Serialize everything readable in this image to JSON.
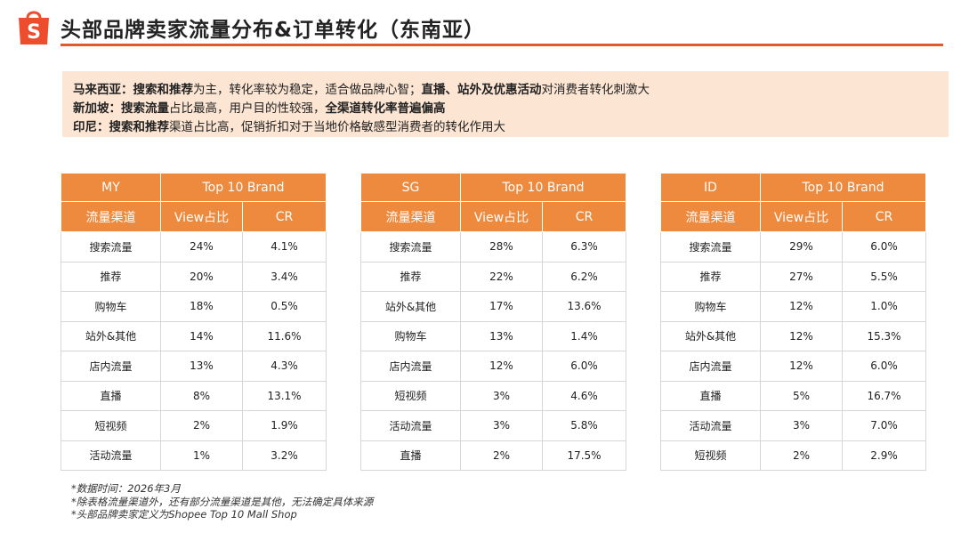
{
  "header": {
    "title": "头部品牌卖家流量分布&订单转化（东南亚）",
    "logo_letter": "S",
    "accent_color": "#e05a2b"
  },
  "summary": {
    "lines": [
      {
        "country": "马来西亚：",
        "bold1": "搜索和推荐",
        "normal1": "为主，转化率较为稳定，适合做品牌心智；",
        "bold2": "直播、站外及优惠活动",
        "normal2": "对消费者转化刺激大"
      },
      {
        "country": "新加坡：",
        "bold1": "搜索流量",
        "normal1": "占比最高，用户目的性较强，",
        "bold2": "全渠道转化率普遍偏高",
        "normal2": ""
      },
      {
        "country": "印尼：",
        "bold1": "搜索和推荐",
        "normal1": "渠道占比高，促销折扣对于当地价格敏感型消费者的转化作用大",
        "bold2": "",
        "normal2": ""
      }
    ]
  },
  "tables": [
    {
      "region": "MY",
      "group_header": "Top 10 Brand",
      "col_channel": "流量渠道",
      "col_view": "View占比",
      "col_cr": "CR",
      "rows": [
        {
          "channel": "搜索流量",
          "view": "24%",
          "cr": "4.1%"
        },
        {
          "channel": "推荐",
          "view": "20%",
          "cr": "3.4%"
        },
        {
          "channel": "购物车",
          "view": "18%",
          "cr": "0.5%"
        },
        {
          "channel": "站外&其他",
          "view": "14%",
          "cr": "11.6%"
        },
        {
          "channel": "店内流量",
          "view": "13%",
          "cr": "4.3%"
        },
        {
          "channel": "直播",
          "view": "8%",
          "cr": "13.1%"
        },
        {
          "channel": "短视频",
          "view": "2%",
          "cr": "1.9%"
        },
        {
          "channel": "活动流量",
          "view": "1%",
          "cr": "3.2%"
        }
      ]
    },
    {
      "region": "SG",
      "group_header": "Top 10 Brand",
      "col_channel": "流量渠道",
      "col_view": "View占比",
      "col_cr": "CR",
      "rows": [
        {
          "channel": "搜索流量",
          "view": "28%",
          "cr": "6.3%"
        },
        {
          "channel": "推荐",
          "view": "22%",
          "cr": "6.2%"
        },
        {
          "channel": "站外&其他",
          "view": "17%",
          "cr": "13.6%"
        },
        {
          "channel": "购物车",
          "view": "13%",
          "cr": "1.4%"
        },
        {
          "channel": "店内流量",
          "view": "12%",
          "cr": "6.0%"
        },
        {
          "channel": "短视频",
          "view": "3%",
          "cr": "4.6%"
        },
        {
          "channel": "活动流量",
          "view": "3%",
          "cr": "5.8%"
        },
        {
          "channel": "直播",
          "view": "2%",
          "cr": "17.5%"
        }
      ]
    },
    {
      "region": "ID",
      "group_header": "Top 10 Brand",
      "col_channel": "流量渠道",
      "col_view": "View占比",
      "col_cr": "CR",
      "rows": [
        {
          "channel": "搜索流量",
          "view": "29%",
          "cr": "6.0%"
        },
        {
          "channel": "推荐",
          "view": "27%",
          "cr": "5.5%"
        },
        {
          "channel": "购物车",
          "view": "12%",
          "cr": "1.0%"
        },
        {
          "channel": "站外&其他",
          "view": "12%",
          "cr": "15.3%"
        },
        {
          "channel": "店内流量",
          "view": "12%",
          "cr": "6.0%"
        },
        {
          "channel": "直播",
          "view": "5%",
          "cr": "16.7%"
        },
        {
          "channel": "活动流量",
          "view": "3%",
          "cr": "7.0%"
        },
        {
          "channel": "短视频",
          "view": "2%",
          "cr": "2.9%"
        }
      ]
    }
  ],
  "notes": [
    "*数据时间：2026年3月",
    "*除表格流量渠道外，还有部分流量渠道是其他，无法确定具体来源",
    "*头部品牌卖家定义为Shopee Top 10 Mall Shop"
  ]
}
